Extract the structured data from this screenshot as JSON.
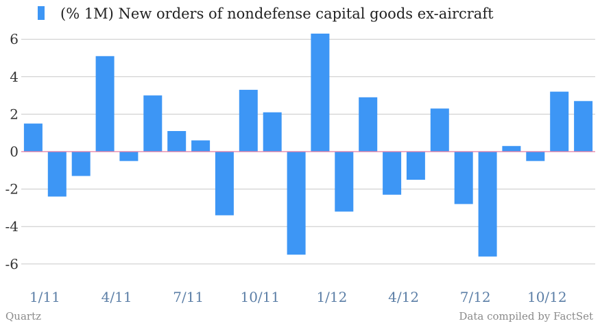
{
  "chart_data": {
    "type": "bar",
    "legend": {
      "label": "(% 1M) New orders of nondefense capital goods ex-aircraft",
      "position": "top-left"
    },
    "categories": [
      "1/11",
      "2/11",
      "3/11",
      "4/11",
      "5/11",
      "6/11",
      "7/11",
      "8/11",
      "9/11",
      "10/11",
      "11/11",
      "12/11",
      "1/12",
      "2/12",
      "3/12",
      "4/12",
      "5/12",
      "6/12",
      "7/12",
      "8/12",
      "9/12",
      "10/12",
      "11/12",
      "12/12"
    ],
    "series": [
      {
        "name": "(% 1M) New orders of nondefense capital goods ex-aircraft",
        "values": [
          1.5,
          -2.4,
          -1.3,
          5.1,
          -0.5,
          3.0,
          1.1,
          0.6,
          -3.4,
          3.3,
          2.1,
          -5.5,
          6.3,
          -3.2,
          2.9,
          -2.3,
          -1.5,
          2.3,
          -2.8,
          -5.6,
          0.3,
          -0.5,
          3.2,
          2.7
        ],
        "color": "#3d96f5"
      }
    ],
    "x_tick_labels": [
      "1/11",
      "4/11",
      "7/11",
      "10/11",
      "1/12",
      "4/12",
      "7/12",
      "10/12"
    ],
    "y_ticks": [
      6,
      4,
      2,
      0,
      -2,
      -4,
      -6
    ],
    "y_tick_labels": [
      "6",
      "4",
      "2",
      "0",
      "-2",
      "-4",
      "-6"
    ],
    "ylim": [
      -7,
      7
    ],
    "grid": true,
    "zero_line_color": "#e57aa0"
  },
  "footer": {
    "source_left": "Quartz",
    "source_right": "Data compiled by FactSet"
  }
}
